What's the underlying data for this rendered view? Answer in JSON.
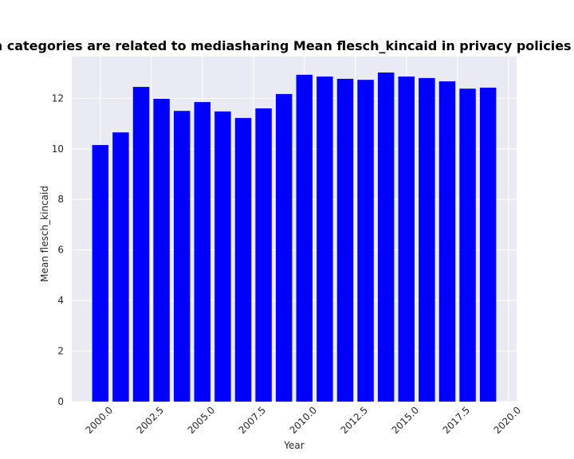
{
  "chart_data": {
    "type": "bar",
    "title": "when categories are related to mediasharing Mean flesch_kincaid in privacy policies by Year",
    "xlabel": "Year",
    "ylabel": "Mean flesch_kincaid",
    "x": [
      2000,
      2001,
      2002,
      2003,
      2004,
      2005,
      2006,
      2007,
      2008,
      2009,
      2010,
      2011,
      2012,
      2013,
      2014,
      2015,
      2016,
      2017,
      2018,
      2019
    ],
    "values": [
      10.15,
      10.65,
      12.45,
      11.98,
      11.5,
      11.85,
      11.48,
      11.22,
      11.6,
      12.17,
      12.93,
      12.86,
      12.77,
      12.73,
      13.02,
      12.86,
      12.8,
      12.67,
      12.38,
      12.42
    ],
    "xlim": [
      1998.6,
      2020.4
    ],
    "ylim": [
      0,
      13.65
    ],
    "xticks": [
      2000,
      2002.5,
      2005,
      2007.5,
      2010,
      2012.5,
      2015,
      2017.5,
      2020
    ],
    "xtick_labels": [
      "2000.0",
      "2002.5",
      "2005.0",
      "2007.5",
      "2010.0",
      "2012.5",
      "2015.0",
      "2017.5",
      "2020.0"
    ],
    "yticks": [
      0,
      2,
      4,
      6,
      8,
      10,
      12
    ],
    "ytick_labels": [
      "0",
      "2",
      "4",
      "6",
      "8",
      "10",
      "12"
    ],
    "bar_color": "#0000ff",
    "background_color": "#eaeaf2",
    "grid": true
  }
}
